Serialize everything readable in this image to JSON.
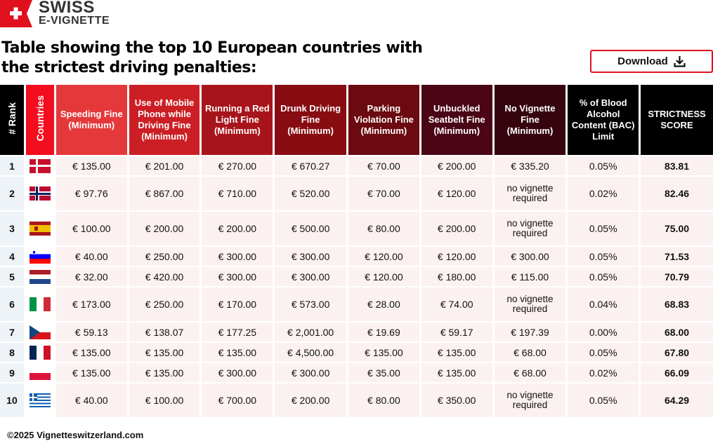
{
  "brand": {
    "line1": "SWISS",
    "line2": "E-VIGNETTE",
    "color": "#e0101e"
  },
  "title": "Table showing the top 10 European countries with the strictest driving penalties:",
  "download": {
    "label": "Download",
    "icon": "download-icon"
  },
  "headers": [
    {
      "label": "# Rank",
      "bg": "#000000"
    },
    {
      "label": "Countries",
      "bg": "#f20d1f"
    },
    {
      "label": "Speeding Fine (Minimum)",
      "bg": "#e5383b"
    },
    {
      "label": "Use of Mobile Phone while Driving Fine (Minimum)",
      "bg": "#cc1f25"
    },
    {
      "label": "Running a Red Light Fine (Minimum)",
      "bg": "#a8141b"
    },
    {
      "label": "Drunk Driving Fine (Minimum)",
      "bg": "#870d12"
    },
    {
      "label": "Parking Violation Fine (Minimum)",
      "bg": "#6b0a10"
    },
    {
      "label": "Unbuckled Seatbelt Fine (Minimum)",
      "bg": "#4a0516"
    },
    {
      "label": "No Vignette Fine (Minimum)",
      "bg": "#35040f"
    },
    {
      "label": "% of Blood Alcohol Content (BAC) Limit",
      "bg": "#000000"
    },
    {
      "label": "STRICTNESS SCORE",
      "bg": "#000000"
    }
  ],
  "rows": [
    {
      "rank": "1",
      "flag": "denmark",
      "cells": [
        "€ 135.00",
        "€ 201.00",
        "€ 270.00",
        "€ 670.27",
        "€ 70.00",
        "€ 200.00",
        "€ 335.20",
        "0.05%"
      ],
      "score": "83.81"
    },
    {
      "rank": "2",
      "flag": "norway",
      "cells": [
        "€ 97.76",
        "€ 867.00",
        "€ 710.00",
        "€ 520.00",
        "€ 70.00",
        "€ 120.00",
        "no vignette required",
        "0.02%"
      ],
      "score": "82.46"
    },
    {
      "rank": "3",
      "flag": "spain",
      "cells": [
        "€ 100.00",
        "€ 200.00",
        "€ 200.00",
        "€ 500.00",
        "€ 80.00",
        "€ 200.00",
        "no vignette required",
        "0.05%"
      ],
      "score": "75.00"
    },
    {
      "rank": "4",
      "flag": "slovenia",
      "cells": [
        "€ 40.00",
        "€ 250.00",
        "€ 300.00",
        "€ 300.00",
        "€ 120.00",
        "€ 120.00",
        "€ 300.00",
        "0.05%"
      ],
      "score": "71.53"
    },
    {
      "rank": "5",
      "flag": "netherlands",
      "cells": [
        "€ 32.00",
        "€ 420.00",
        "€ 300.00",
        "€ 300.00",
        "€ 120.00",
        "€ 180.00",
        "€ 115.00",
        "0.05%"
      ],
      "score": "70.79"
    },
    {
      "rank": "6",
      "flag": "italy",
      "cells": [
        "€ 173.00",
        "€ 250.00",
        "€ 170.00",
        "€ 573.00",
        "€ 28.00",
        "€ 74.00",
        "no vignette required",
        "0.04%"
      ],
      "score": "68.83"
    },
    {
      "rank": "7",
      "flag": "czechia",
      "cells": [
        "€ 59.13",
        "€ 138.07",
        "€ 177.25",
        "€ 2,001.00",
        "€ 19.69",
        "€ 59.17",
        "€ 197.39",
        "0.00%"
      ],
      "score": "68.00"
    },
    {
      "rank": "8",
      "flag": "france",
      "cells": [
        "€ 135.00",
        "€ 135.00",
        "€ 135.00",
        "€ 4,500.00",
        "€ 135.00",
        "€ 135.00",
        "€ 68.00",
        "0.05%"
      ],
      "score": "67.80"
    },
    {
      "rank": "9",
      "flag": "poland",
      "cells": [
        "€ 135.00",
        "€ 135.00",
        "€ 300.00",
        "€ 300.00",
        "€ 35.00",
        "€ 135.00",
        "€ 68.00",
        "0.02%"
      ],
      "score": "66.09"
    },
    {
      "rank": "10",
      "flag": "greece",
      "cells": [
        "€ 40.00",
        "€ 100.00",
        "€ 700.00",
        "€ 200.00",
        "€ 80.00",
        "€ 350.00",
        "no vignette required",
        "0.05%"
      ],
      "score": "64.29"
    }
  ],
  "footer": "©2025 Vignetteswitzerland.com"
}
